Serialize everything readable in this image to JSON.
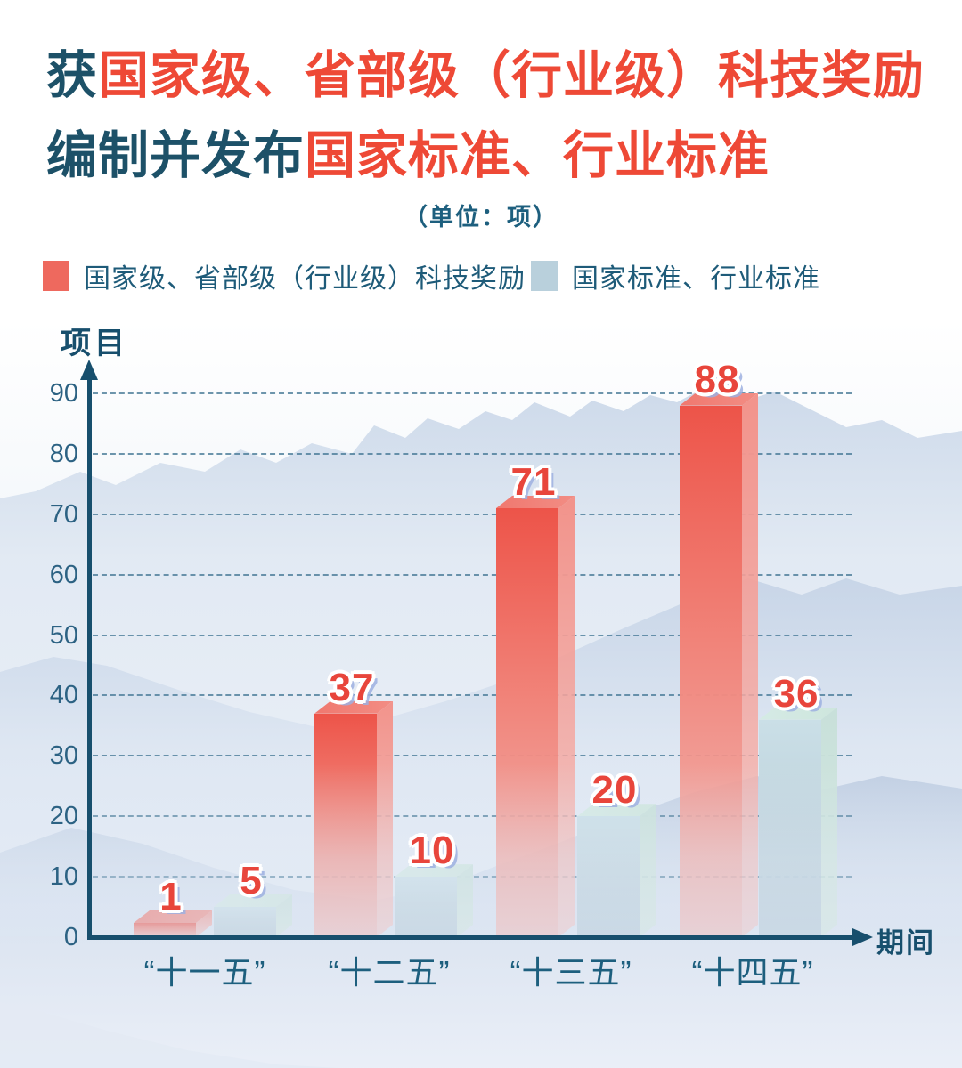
{
  "title": {
    "line1_prefix": "获",
    "line1_emphasis": "国家级、省部级（行业级）科技奖励",
    "line2_prefix": "编制并发布",
    "line2_emphasis": "国家标准、行业标准"
  },
  "subtitle": "（单位：项）",
  "legend": {
    "items": [
      {
        "label": "国家级、省部级（行业级）科技奖励",
        "color": "#ee695e"
      },
      {
        "label": "国家标准、行业标准",
        "color": "#b9d0dc"
      }
    ]
  },
  "axes": {
    "y_title": "项目",
    "x_title": "期间"
  },
  "colors": {
    "title_red": "#ee4936",
    "title_teal": "#1d5168",
    "subtitle": "#1d5f7e",
    "legend_text": "#1e5b79",
    "axis": "#174f6d",
    "grid": "#4a7c99",
    "tick_text": "#2c6283",
    "category_text": "#1d5f7e",
    "value_label": "#e8453b",
    "value_shadow": "rgba(158,176,225,0.85)"
  },
  "chart_data": {
    "type": "bar",
    "title": "获国家级、省部级（行业级）科技奖励 编制并发布国家标准、行业标准",
    "unit_note": "（单位：项）",
    "categories": [
      "“十一五”",
      "“十二五”",
      "“十三五”",
      "“十四五”"
    ],
    "series": [
      {
        "name": "国家级、省部级（行业级）科技奖励",
        "values": [
          1,
          37,
          71,
          88
        ],
        "colors": {
          "front": "#ed5449",
          "front_mid": "#f1847a",
          "front_fade": "rgba(246,177,170,0.8)",
          "top": "#f0786f",
          "top2": "#f28d84",
          "side": "#f2938b",
          "side_fade": "rgba(248,190,184,0.72)"
        }
      },
      {
        "name": "国家标准、行业标准",
        "values": [
          5,
          10,
          20,
          36
        ],
        "colors": {
          "front": "#cadfe7",
          "front_mid": "#c0d4dd",
          "front_fade": "rgba(177,199,211,0.85)",
          "top": "#d5eae5",
          "top2": "#cee6dd",
          "side": "#c8e0da",
          "side_fade": "rgba(211,233,220,0.8)"
        }
      }
    ],
    "xlabel": "期间",
    "ylabel": "项目",
    "ylim": [
      0,
      90
    ],
    "yticks": [
      0,
      10,
      20,
      30,
      40,
      50,
      60,
      70,
      80,
      90
    ],
    "grid": "dashed-horizontal",
    "legend_position": "top-left",
    "value_labels": true
  }
}
